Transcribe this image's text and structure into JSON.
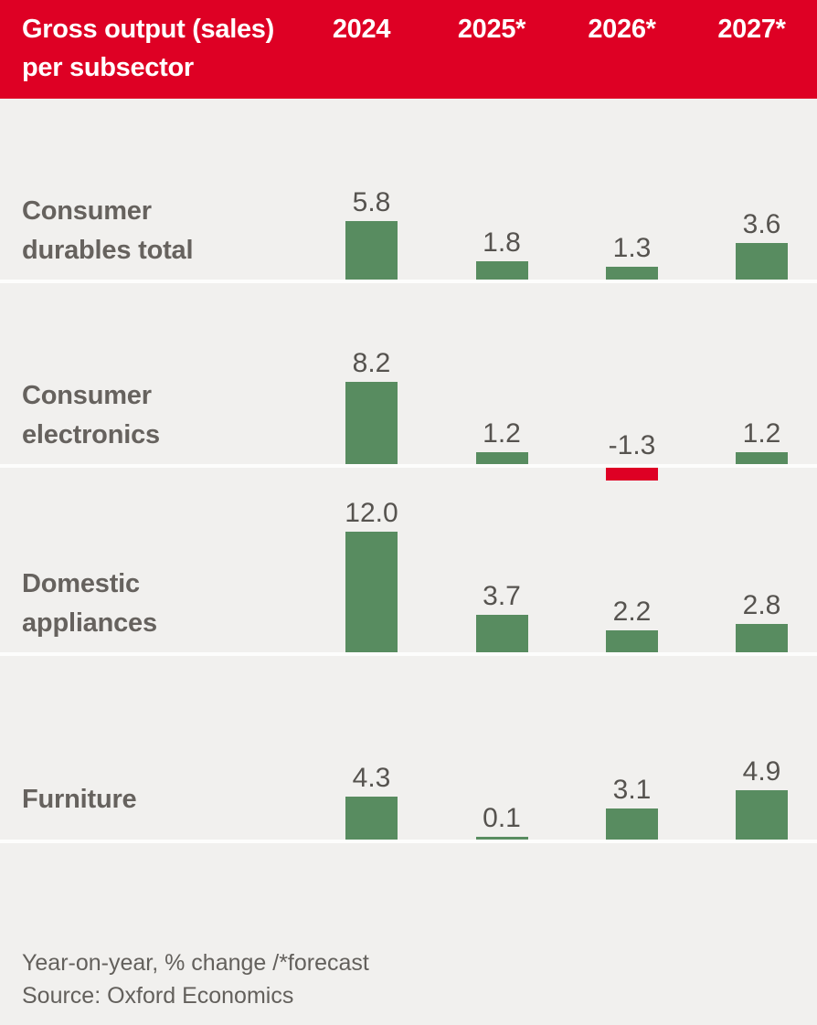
{
  "header": {
    "title_line1": "Gross output (sales)",
    "title_line2": "per subsector"
  },
  "footer": {
    "note": "Year-on-year, % change /*forecast",
    "source": "Source: Oxford Economics"
  },
  "colors": {
    "header_bg": "#DE0024",
    "positive_bar": "#588C60",
    "negative_bar": "#DE0024",
    "background": "#F1F0EE",
    "separator": "#FDFDFC"
  },
  "chart_data": {
    "type": "bar",
    "title": "Gross output (sales) per subsector",
    "categories": [
      "2024",
      "2025*",
      "2026*",
      "2027*"
    ],
    "ylabel": "Year-on-year, % change",
    "footnote": "Year-on-year, % change /*forecast",
    "source": "Source: Oxford Economics",
    "legend_position": "none",
    "grid": false,
    "series": [
      {
        "name": "Consumer durables total",
        "label_lines": [
          "Consumer",
          "durables total"
        ],
        "values": [
          5.8,
          1.8,
          1.3,
          3.6
        ]
      },
      {
        "name": "Consumer electronics",
        "label_lines": [
          "Consumer",
          "electronics"
        ],
        "values": [
          8.2,
          1.2,
          -1.3,
          1.2
        ]
      },
      {
        "name": "Domestic appliances",
        "label_lines": [
          "Domestic",
          "appliances"
        ],
        "values": [
          12.0,
          3.7,
          2.2,
          2.8
        ]
      },
      {
        "name": "Furniture",
        "label_lines": [
          "Furniture"
        ],
        "values": [
          4.3,
          0.1,
          3.1,
          4.9
        ]
      }
    ]
  }
}
